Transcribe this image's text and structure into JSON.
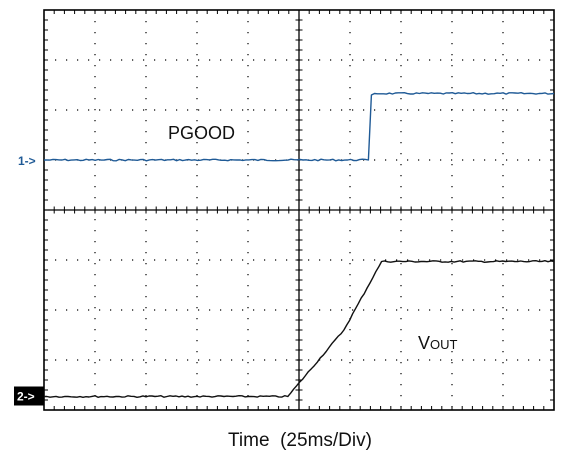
{
  "xlabel": "Time  (25ms/Div)",
  "colors": {
    "ch1": "#1f5a96",
    "ch2": "#111111",
    "grid": "#000000",
    "bg": "#ffffff"
  },
  "chart_data": {
    "type": "line",
    "title": "",
    "xlabel": "Time  (25ms/Div)",
    "ylabel": "",
    "x_unit": "ms",
    "xlim": [
      0,
      250
    ],
    "ylim": [
      0,
      8
    ],
    "divisions": {
      "x": 10,
      "y": 8
    },
    "grid": true,
    "markers": [
      {
        "label": "1->",
        "channel": "ch1",
        "y": 5
      },
      {
        "label": "2->",
        "channel": "ch2",
        "y": 0.27
      }
    ],
    "annotations": [
      {
        "text": "PGOOD",
        "series": "ch1"
      },
      {
        "text": "V",
        "sub": "OUT",
        "series": "ch2"
      }
    ],
    "series": [
      {
        "id": "ch1",
        "name": "PGOOD",
        "color": "#1f5a96",
        "x": [
          0,
          127,
          159,
          160.5,
          162,
          250
        ],
        "y": [
          5,
          5,
          5,
          6.3,
          6.33,
          6.33
        ]
      },
      {
        "id": "ch2",
        "name": "VOUT",
        "color": "#111111",
        "x": [
          0,
          100,
          119.5,
          147,
          165.5,
          250
        ],
        "y": [
          0.27,
          0.27,
          0.27,
          1.6,
          2.97,
          2.97
        ]
      }
    ]
  }
}
